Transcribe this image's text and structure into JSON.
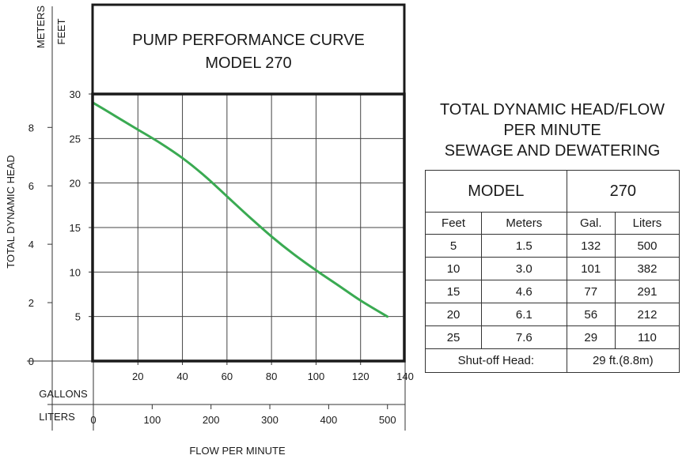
{
  "chart_data": {
    "type": "line",
    "title": "PUMP PERFORMANCE CURVE",
    "subtitle": "MODEL 270",
    "ylabel": "TOTAL DYNAMIC HEAD",
    "xlabel": "FLOW PER MINUTE",
    "y_unit_feet": "FEET",
    "y_unit_meters": "METERS",
    "x_unit_gallons": "GALLONS",
    "x_unit_liters": "LITERS",
    "x_gallons_ticks": [
      20,
      40,
      60,
      80,
      100,
      120,
      140
    ],
    "x_liters_ticks": [
      0,
      100,
      200,
      300,
      400,
      500
    ],
    "y_feet_ticks": [
      5,
      10,
      15,
      20,
      25,
      30
    ],
    "y_meters_ticks": [
      0,
      2,
      4,
      6,
      8
    ],
    "xlim": [
      0,
      140
    ],
    "ylim": [
      0,
      30
    ],
    "grid": true,
    "line_color": "#3aaa52",
    "series": [
      {
        "x": [
          0,
          10,
          20,
          30,
          40,
          50,
          60,
          70,
          80,
          90,
          100,
          110,
          120,
          132
        ],
        "y": [
          29,
          27.5,
          26,
          24.5,
          22.8,
          20.8,
          18.5,
          16.2,
          14,
          12,
          10.2,
          8.5,
          6.8,
          5
        ]
      }
    ]
  },
  "table": {
    "title_lines": [
      "TOTAL DYNAMIC HEAD/FLOW",
      "PER MINUTE",
      "SEWAGE AND DEWATERING"
    ],
    "model_label": "MODEL",
    "model_value": "270",
    "headers": [
      "Feet",
      "Meters",
      "Gal.",
      "Liters"
    ],
    "rows": [
      [
        "5",
        "1.5",
        "132",
        "500"
      ],
      [
        "10",
        "3.0",
        "101",
        "382"
      ],
      [
        "15",
        "4.6",
        "77",
        "291"
      ],
      [
        "20",
        "6.1",
        "56",
        "212"
      ],
      [
        "25",
        "7.6",
        "29",
        "110"
      ]
    ],
    "shutoff_label": "Shut-off Head:",
    "shutoff_value": "29 ft.(8.8m)"
  }
}
